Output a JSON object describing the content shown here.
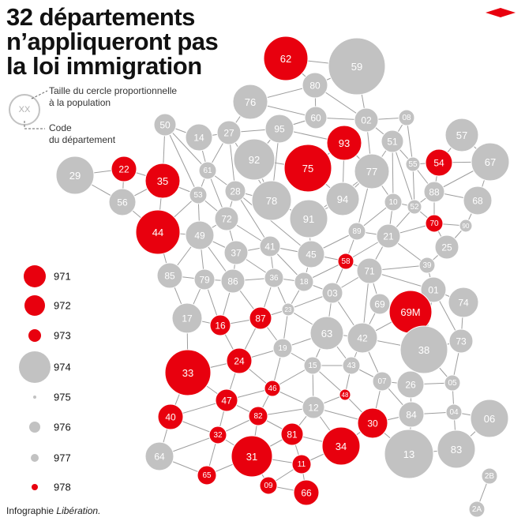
{
  "title": [
    "32 départements",
    "n’appliqueront pas",
    "la loi immigration"
  ],
  "colors": {
    "refuse": "#e8000e",
    "other": "#c2c2c2",
    "link": "#9d9d9d",
    "logo": "#e8000e"
  },
  "key": {
    "sample_code": "XX",
    "size_text_1": "Taille du cercle proportionnelle",
    "size_text_2": "à la population",
    "code_text_1": "Code",
    "code_text_2": "du département"
  },
  "overseas": [
    {
      "code": "971",
      "status": "refuse"
    },
    {
      "code": "972",
      "status": "refuse"
    },
    {
      "code": "973",
      "status": "refuse"
    },
    {
      "code": "974",
      "status": "other"
    },
    {
      "code": "975",
      "status": "other"
    },
    {
      "code": "976",
      "status": "other"
    },
    {
      "code": "977",
      "status": "other"
    },
    {
      "code": "978",
      "status": "refuse"
    }
  ],
  "departements": [
    {
      "code": "62",
      "status": "refuse"
    },
    {
      "code": "59",
      "status": "other"
    },
    {
      "code": "80",
      "status": "other"
    },
    {
      "code": "76",
      "status": "other"
    },
    {
      "code": "60",
      "status": "other"
    },
    {
      "code": "02",
      "status": "other"
    },
    {
      "code": "08",
      "status": "other"
    },
    {
      "code": "50",
      "status": "other"
    },
    {
      "code": "14",
      "status": "other"
    },
    {
      "code": "27",
      "status": "other"
    },
    {
      "code": "95",
      "status": "other"
    },
    {
      "code": "93",
      "status": "refuse"
    },
    {
      "code": "51",
      "status": "other"
    },
    {
      "code": "57",
      "status": "other"
    },
    {
      "code": "29",
      "status": "other"
    },
    {
      "code": "22",
      "status": "refuse"
    },
    {
      "code": "35",
      "status": "refuse"
    },
    {
      "code": "61",
      "status": "other"
    },
    {
      "code": "92",
      "status": "other"
    },
    {
      "code": "75",
      "status": "refuse"
    },
    {
      "code": "77",
      "status": "other"
    },
    {
      "code": "55",
      "status": "other"
    },
    {
      "code": "54",
      "status": "refuse"
    },
    {
      "code": "67",
      "status": "other"
    },
    {
      "code": "56",
      "status": "other"
    },
    {
      "code": "53",
      "status": "other"
    },
    {
      "code": "28",
      "status": "other"
    },
    {
      "code": "78",
      "status": "other"
    },
    {
      "code": "91",
      "status": "other"
    },
    {
      "code": "94",
      "status": "other"
    },
    {
      "code": "10",
      "status": "other"
    },
    {
      "code": "52",
      "status": "other"
    },
    {
      "code": "88",
      "status": "other"
    },
    {
      "code": "68",
      "status": "other"
    },
    {
      "code": "44",
      "status": "refuse"
    },
    {
      "code": "49",
      "status": "other"
    },
    {
      "code": "72",
      "status": "other"
    },
    {
      "code": "70",
      "status": "refuse"
    },
    {
      "code": "90",
      "status": "other"
    },
    {
      "code": "89",
      "status": "other"
    },
    {
      "code": "21",
      "status": "other"
    },
    {
      "code": "25",
      "status": "other"
    },
    {
      "code": "37",
      "status": "other"
    },
    {
      "code": "41",
      "status": "other"
    },
    {
      "code": "45",
      "status": "other"
    },
    {
      "code": "58",
      "status": "refuse"
    },
    {
      "code": "39",
      "status": "other"
    },
    {
      "code": "85",
      "status": "other"
    },
    {
      "code": "79",
      "status": "other"
    },
    {
      "code": "86",
      "status": "other"
    },
    {
      "code": "36",
      "status": "other"
    },
    {
      "code": "18",
      "status": "other"
    },
    {
      "code": "03",
      "status": "other"
    },
    {
      "code": "71",
      "status": "other"
    },
    {
      "code": "01",
      "status": "other"
    },
    {
      "code": "74",
      "status": "other"
    },
    {
      "code": "69",
      "status": "other"
    },
    {
      "code": "69M",
      "status": "refuse"
    },
    {
      "code": "23",
      "status": "other"
    },
    {
      "code": "17",
      "status": "other"
    },
    {
      "code": "16",
      "status": "refuse"
    },
    {
      "code": "87",
      "status": "refuse"
    },
    {
      "code": "63",
      "status": "other"
    },
    {
      "code": "42",
      "status": "other"
    },
    {
      "code": "38",
      "status": "other"
    },
    {
      "code": "73",
      "status": "other"
    },
    {
      "code": "19",
      "status": "other"
    },
    {
      "code": "24",
      "status": "refuse"
    },
    {
      "code": "33",
      "status": "refuse"
    },
    {
      "code": "15",
      "status": "other"
    },
    {
      "code": "43",
      "status": "other"
    },
    {
      "code": "07",
      "status": "other"
    },
    {
      "code": "26",
      "status": "other"
    },
    {
      "code": "05",
      "status": "other"
    },
    {
      "code": "46",
      "status": "refuse"
    },
    {
      "code": "48",
      "status": "refuse"
    },
    {
      "code": "47",
      "status": "refuse"
    },
    {
      "code": "40",
      "status": "refuse"
    },
    {
      "code": "82",
      "status": "refuse"
    },
    {
      "code": "12",
      "status": "other"
    },
    {
      "code": "30",
      "status": "refuse"
    },
    {
      "code": "84",
      "status": "other"
    },
    {
      "code": "04",
      "status": "other"
    },
    {
      "code": "06",
      "status": "other"
    },
    {
      "code": "32",
      "status": "refuse"
    },
    {
      "code": "81",
      "status": "refuse"
    },
    {
      "code": "34",
      "status": "refuse"
    },
    {
      "code": "13",
      "status": "other"
    },
    {
      "code": "83",
      "status": "other"
    },
    {
      "code": "64",
      "status": "other"
    },
    {
      "code": "31",
      "status": "refuse"
    },
    {
      "code": "11",
      "status": "refuse"
    },
    {
      "code": "65",
      "status": "refuse"
    },
    {
      "code": "09",
      "status": "refuse"
    },
    {
      "code": "66",
      "status": "refuse"
    },
    {
      "code": "2B",
      "status": "other"
    },
    {
      "code": "2A",
      "status": "other"
    }
  ],
  "credit": {
    "prefix": "Infographie",
    "source": "Libération."
  }
}
